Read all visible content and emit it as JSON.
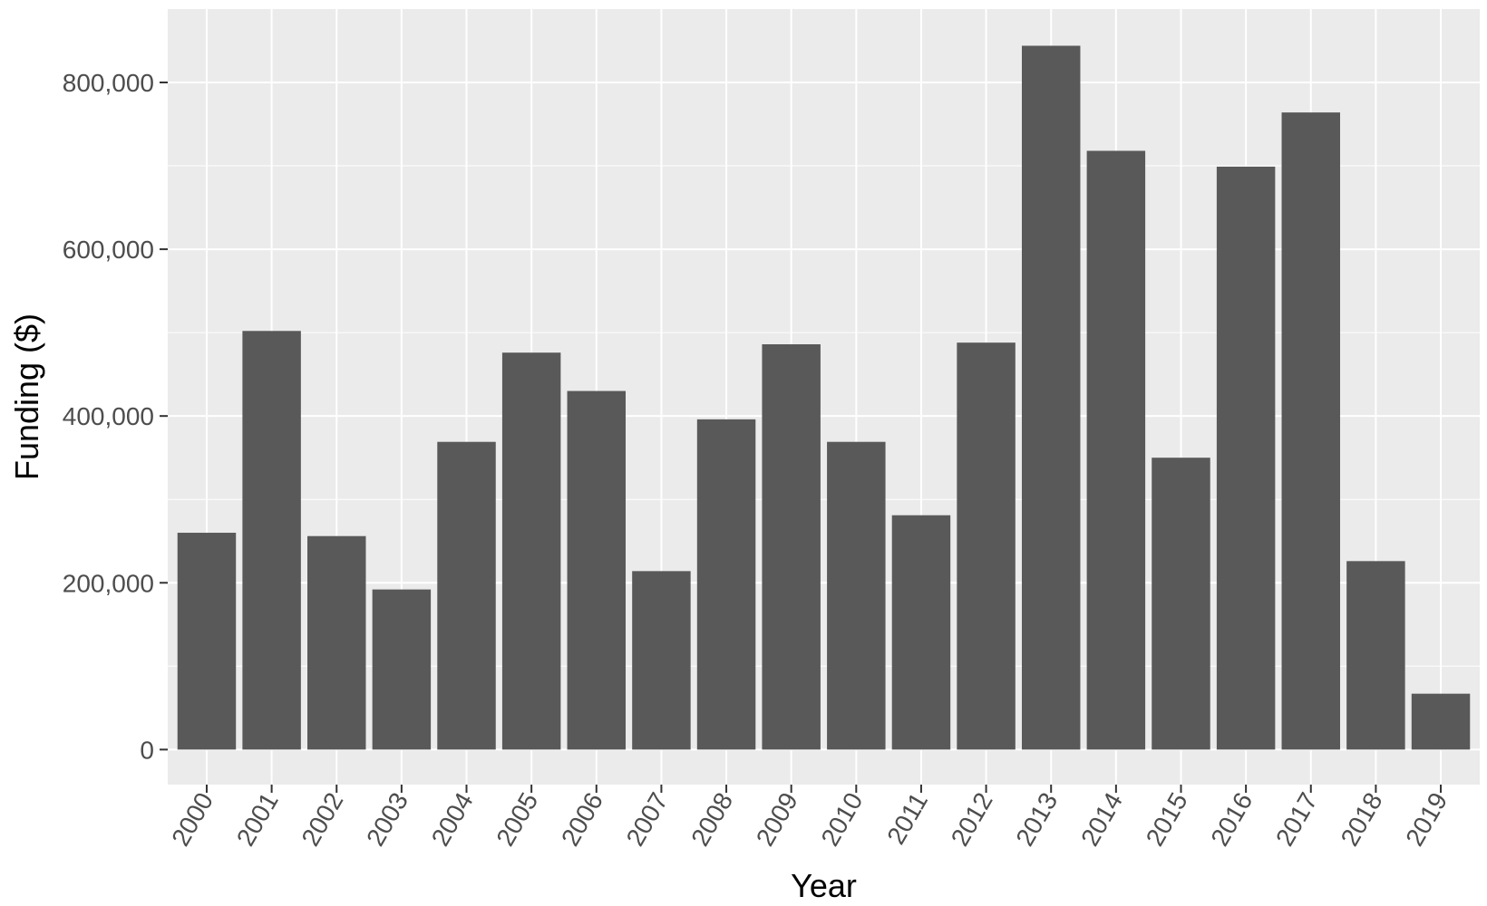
{
  "colors": {
    "panel_background": "#ebebeb",
    "grid_major": "#ffffff",
    "bar_fill": "#595959",
    "tick_text": "#4d4d4d",
    "axis_title_text": "#000000"
  },
  "chart_data": {
    "type": "bar",
    "xlabel": "Year",
    "ylabel": "Funding ($)",
    "categories": [
      "2000",
      "2001",
      "2002",
      "2003",
      "2004",
      "2005",
      "2006",
      "2007",
      "2008",
      "2009",
      "2010",
      "2011",
      "2012",
      "2013",
      "2014",
      "2015",
      "2016",
      "2017",
      "2018",
      "2019"
    ],
    "values": [
      260000,
      502000,
      256000,
      192000,
      369000,
      476000,
      430000,
      214000,
      396000,
      486000,
      369000,
      281000,
      488000,
      844000,
      718000,
      350000,
      699000,
      764000,
      226000,
      67000
    ],
    "ylim": [
      -42000,
      888000
    ],
    "y_ticks": [
      0,
      200000,
      400000,
      600000,
      800000
    ],
    "y_tick_labels": [
      "0",
      "200,000",
      "400,000",
      "600,000",
      "800,000"
    ],
    "x_tick_rotation_deg": -60,
    "grid": true,
    "legend": "none"
  }
}
